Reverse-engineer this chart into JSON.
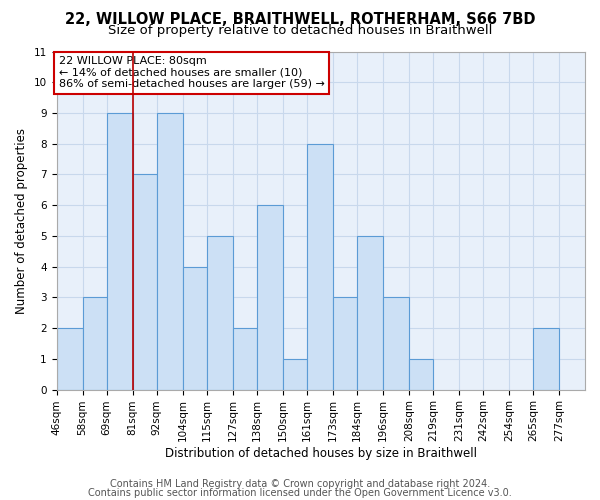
{
  "title": "22, WILLOW PLACE, BRAITHWELL, ROTHERHAM, S66 7BD",
  "subtitle": "Size of property relative to detached houses in Braithwell",
  "xlabel": "Distribution of detached houses by size in Braithwell",
  "ylabel": "Number of detached properties",
  "footer_line1": "Contains HM Land Registry data © Crown copyright and database right 2024.",
  "footer_line2": "Contains public sector information licensed under the Open Government Licence v3.0.",
  "bin_labels": [
    "46sqm",
    "58sqm",
    "69sqm",
    "81sqm",
    "92sqm",
    "104sqm",
    "115sqm",
    "127sqm",
    "138sqm",
    "150sqm",
    "161sqm",
    "173sqm",
    "184sqm",
    "196sqm",
    "208sqm",
    "219sqm",
    "231sqm",
    "242sqm",
    "254sqm",
    "265sqm",
    "277sqm"
  ],
  "bin_edges": [
    46,
    58,
    69,
    81,
    92,
    104,
    115,
    127,
    138,
    150,
    161,
    173,
    184,
    196,
    208,
    219,
    231,
    242,
    254,
    265,
    277,
    289
  ],
  "bar_heights": [
    2,
    3,
    9,
    7,
    9,
    4,
    5,
    2,
    6,
    1,
    8,
    3,
    5,
    3,
    1,
    0,
    0,
    0,
    0,
    2,
    0
  ],
  "bar_color": "#cce0f5",
  "bar_edge_color": "#5b9bd5",
  "grid_color": "#c8d8ec",
  "background_color": "#e8f0fa",
  "red_line_x": 81,
  "ylim": [
    0,
    11
  ],
  "yticks": [
    0,
    1,
    2,
    3,
    4,
    5,
    6,
    7,
    8,
    9,
    10,
    11
  ],
  "annotation_text": "22 WILLOW PLACE: 80sqm\n← 14% of detached houses are smaller (10)\n86% of semi-detached houses are larger (59) →",
  "annotation_box_color": "#ffffff",
  "annotation_box_edge_color": "#cc0000",
  "title_fontsize": 10.5,
  "subtitle_fontsize": 9.5,
  "axis_label_fontsize": 8.5,
  "tick_fontsize": 7.5,
  "annotation_fontsize": 8,
  "footer_fontsize": 7
}
